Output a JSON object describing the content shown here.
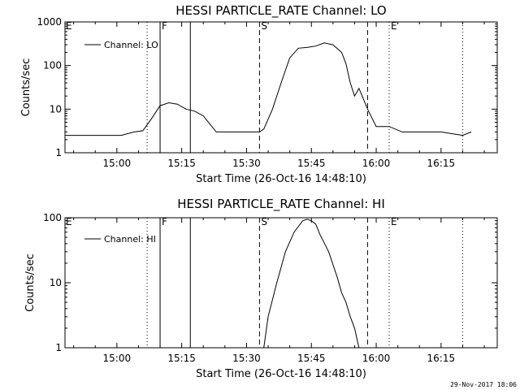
{
  "footer": {
    "timestamp": "29-Nov-2017 18:06"
  },
  "chart_data": [
    {
      "type": "line",
      "title": "HESSI PARTICLE_RATE Channel: LO",
      "xlabel": "Start Time (26-Oct-16 14:48:10)",
      "ylabel": "Counts/sec",
      "log_y": true,
      "xlim": [
        "14:48",
        "16:28"
      ],
      "ylim": [
        1,
        1000
      ],
      "x_ticks": [
        "15:00",
        "15:15",
        "15:30",
        "15:45",
        "16:00",
        "16:15"
      ],
      "y_ticks": [
        "1",
        "10",
        "100",
        "1000"
      ],
      "legend": {
        "label": "Channel: LO",
        "position": "top-left"
      },
      "series": [
        {
          "name": "Channel: LO",
          "color": "#000000",
          "x": [
            "14:48",
            "14:52",
            "14:55",
            "14:58",
            "15:01",
            "15:04",
            "15:06",
            "15:08",
            "15:10",
            "15:12",
            "15:14",
            "15:16",
            "15:18",
            "15:20",
            "15:23",
            "15:26",
            "15:30",
            "15:33",
            "15:34",
            "15:36",
            "15:38",
            "15:40",
            "15:42",
            "15:44",
            "15:46",
            "15:48",
            "15:50",
            "15:52",
            "15:53",
            "15:54",
            "15:55",
            "15:56",
            "15:58",
            "16:00",
            "16:03",
            "16:06",
            "16:10",
            "16:15",
            "16:20",
            "16:22"
          ],
          "values": [
            2.5,
            2.5,
            2.5,
            2.5,
            2.5,
            3,
            3.2,
            6,
            12,
            14,
            13,
            10,
            9,
            7,
            3,
            3,
            3,
            3,
            3.5,
            10,
            40,
            150,
            250,
            260,
            280,
            330,
            300,
            200,
            110,
            40,
            20,
            30,
            10,
            4,
            4,
            3,
            3,
            3,
            2.5,
            3
          ]
        }
      ],
      "markers": [
        {
          "time": "15:07",
          "style": "dotted",
          "label": ""
        },
        {
          "time": "15:10",
          "style": "solid",
          "label": "F"
        },
        {
          "time": "15:17",
          "style": "solid",
          "label": ""
        },
        {
          "time": "15:33",
          "style": "dashed",
          "label": "S"
        },
        {
          "time": "15:58",
          "style": "dashed",
          "label": ""
        },
        {
          "time": "16:03",
          "style": "dotted",
          "label": "E"
        },
        {
          "time": "16:20",
          "style": "dotted",
          "label": ""
        }
      ],
      "corner_label": "E"
    },
    {
      "type": "line",
      "title": "HESSI PARTICLE_RATE Channel: HI",
      "xlabel": "Start Time (26-Oct-16 14:48:10)",
      "ylabel": "Counts/sec",
      "log_y": true,
      "xlim": [
        "14:48",
        "16:28"
      ],
      "ylim": [
        1,
        100
      ],
      "x_ticks": [
        "15:00",
        "15:15",
        "15:30",
        "15:45",
        "16:00",
        "16:15"
      ],
      "y_ticks": [
        "1",
        "10",
        "100"
      ],
      "legend": {
        "label": "Channel: HI",
        "position": "top-left"
      },
      "series": [
        {
          "name": "Channel: HI",
          "color": "#000000",
          "x": [
            "15:34",
            "15:35",
            "15:37",
            "15:39",
            "15:41",
            "15:43",
            "15:44",
            "15:45",
            "15:46",
            "15:47",
            "15:49",
            "15:51",
            "15:52",
            "15:53",
            "15:54",
            "15:55",
            "15:56"
          ],
          "values": [
            1,
            3,
            10,
            30,
            60,
            90,
            95,
            90,
            80,
            55,
            30,
            12,
            7,
            5,
            3,
            2,
            1
          ]
        }
      ],
      "markers": [
        {
          "time": "15:07",
          "style": "dotted",
          "label": ""
        },
        {
          "time": "15:10",
          "style": "solid",
          "label": "F"
        },
        {
          "time": "15:17",
          "style": "solid",
          "label": ""
        },
        {
          "time": "15:33",
          "style": "dashed",
          "label": "S"
        },
        {
          "time": "15:58",
          "style": "dashed",
          "label": ""
        },
        {
          "time": "16:03",
          "style": "dotted",
          "label": "E"
        },
        {
          "time": "16:20",
          "style": "dotted",
          "label": ""
        }
      ],
      "corner_label": "E"
    }
  ]
}
